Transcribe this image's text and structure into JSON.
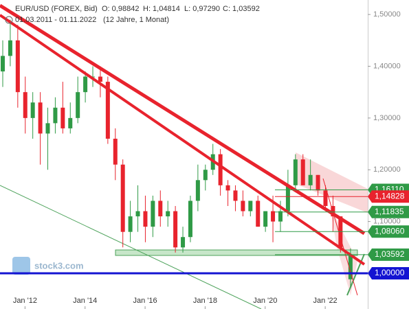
{
  "chart_data": {
    "type": "candlestick",
    "title": "EUR/USD (FOREX, Bid)",
    "quote": [
      "O: 0,98842",
      "H: 1,04814",
      "L: 0,97290",
      "C: 1,03592"
    ],
    "subtitle": "01.03.2011 - 01.11.2022",
    "annotation": "(12 Jahre, 1 Monat)",
    "watermark": "stock3.com",
    "x": [
      "2011-03",
      "2011-06",
      "2011-09",
      "2011-12",
      "2012-03",
      "2012-06",
      "2012-09",
      "2012-12",
      "2013-03",
      "2013-06",
      "2013-09",
      "2013-12",
      "2014-03",
      "2014-06",
      "2014-09",
      "2014-12",
      "2015-03",
      "2015-06",
      "2015-09",
      "2015-12",
      "2016-03",
      "2016-06",
      "2016-09",
      "2016-12",
      "2017-03",
      "2017-06",
      "2017-09",
      "2017-12",
      "2018-03",
      "2018-06",
      "2018-09",
      "2018-12",
      "2019-03",
      "2019-06",
      "2019-09",
      "2019-12",
      "2020-03",
      "2020-06",
      "2020-09",
      "2020-12",
      "2021-03",
      "2021-06",
      "2021-09",
      "2021-12",
      "2022-03",
      "2022-06",
      "2022-10"
    ],
    "open": [
      1.39,
      1.42,
      1.45,
      1.35,
      1.3,
      1.33,
      1.27,
      1.29,
      1.32,
      1.28,
      1.3,
      1.35,
      1.38,
      1.38,
      1.37,
      1.26,
      1.21,
      1.08,
      1.11,
      1.12,
      1.09,
      1.14,
      1.11,
      1.12,
      1.05,
      1.07,
      1.14,
      1.18,
      1.2,
      1.23,
      1.17,
      1.16,
      1.14,
      1.12,
      1.14,
      1.09,
      1.12,
      1.1,
      1.12,
      1.17,
      1.22,
      1.17,
      1.19,
      1.16,
      1.13,
      1.11,
      0.98842
    ],
    "high": [
      1.45,
      1.49,
      1.48,
      1.38,
      1.35,
      1.35,
      1.32,
      1.34,
      1.37,
      1.33,
      1.38,
      1.39,
      1.4,
      1.4,
      1.38,
      1.28,
      1.22,
      1.14,
      1.17,
      1.15,
      1.15,
      1.16,
      1.14,
      1.13,
      1.09,
      1.15,
      1.21,
      1.21,
      1.25,
      1.24,
      1.18,
      1.17,
      1.16,
      1.14,
      1.15,
      1.12,
      1.15,
      1.14,
      1.2,
      1.23,
      1.23,
      1.22,
      1.19,
      1.17,
      1.15,
      1.11,
      1.04814
    ],
    "low": [
      1.36,
      1.4,
      1.32,
      1.27,
      1.26,
      1.21,
      1.2,
      1.27,
      1.27,
      1.27,
      1.29,
      1.33,
      1.36,
      1.34,
      1.25,
      1.18,
      1.05,
      1.06,
      1.08,
      1.06,
      1.07,
      1.09,
      1.09,
      1.04,
      1.04,
      1.06,
      1.12,
      1.16,
      1.19,
      1.15,
      1.13,
      1.12,
      1.11,
      1.11,
      1.09,
      1.08,
      1.06,
      1.08,
      1.11,
      1.16,
      1.17,
      1.16,
      1.15,
      1.12,
      1.08,
      1.04,
      0.9729
    ],
    "close": [
      1.42,
      1.45,
      1.35,
      1.3,
      1.33,
      1.27,
      1.29,
      1.32,
      1.28,
      1.3,
      1.35,
      1.38,
      1.38,
      1.37,
      1.26,
      1.21,
      1.08,
      1.11,
      1.12,
      1.09,
      1.14,
      1.11,
      1.12,
      1.05,
      1.07,
      1.14,
      1.18,
      1.2,
      1.23,
      1.17,
      1.16,
      1.14,
      1.12,
      1.14,
      1.09,
      1.12,
      1.1,
      1.12,
      1.17,
      1.22,
      1.17,
      1.19,
      1.16,
      1.13,
      1.11,
      1.05,
      1.03592
    ],
    "up_color": "#2f9a46",
    "down_color": "#e8232d",
    "xlim": [
      "2011-03",
      "2023-06"
    ],
    "xticks": [
      {
        "value": "2012-01",
        "label": "Jan '12"
      },
      {
        "value": "2014-01",
        "label": "Jan '14"
      },
      {
        "value": "2016-01",
        "label": "Jan '16"
      },
      {
        "value": "2018-01",
        "label": "Jan '18"
      },
      {
        "value": "2020-01",
        "label": "Jan '20"
      },
      {
        "value": "2022-01",
        "label": "Jan '22"
      }
    ],
    "ylim": [
      0.931,
      1.528
    ],
    "yticks": [
      {
        "value": 1.5,
        "label": "1,50000"
      },
      {
        "value": 1.4,
        "label": "1,40000"
      },
      {
        "value": 1.3,
        "label": "1,30000"
      },
      {
        "value": 1.2,
        "label": "1,20000"
      },
      {
        "value": 1.1,
        "label": "1,10000"
      },
      {
        "value": 1.0,
        "label": "1,00000"
      }
    ],
    "levels": [
      {
        "value": 1.1611,
        "label": "1,16110",
        "color": "#2f9a46"
      },
      {
        "value": 1.14828,
        "label": "1,14828",
        "color": "#e8232d"
      },
      {
        "value": 1.11835,
        "label": "1,11835",
        "color": "#2f9a46"
      },
      {
        "value": 1.0806,
        "label": "1,08060",
        "color": "#2f9a46"
      },
      {
        "value": 1.03592,
        "label": "1,03592",
        "color": "#2f9a46"
      },
      {
        "value": 1.0,
        "label": "1,00000",
        "color": "#1414d2"
      }
    ]
  }
}
